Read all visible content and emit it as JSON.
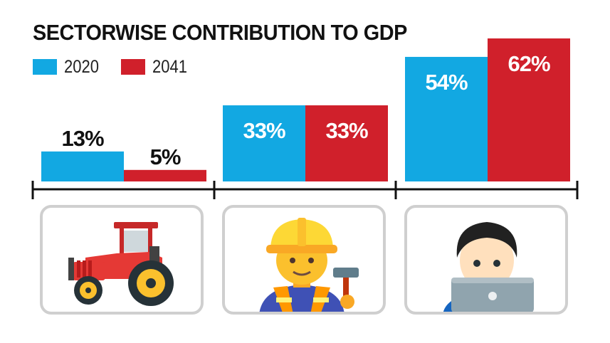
{
  "chart_data": {
    "type": "bar",
    "title": "SECTORWISE CONTRIBUTION TO GDP",
    "categories": [
      "Agriculture",
      "Industry",
      "Services"
    ],
    "series": [
      {
        "name": "2020",
        "values": [
          13,
          33,
          54
        ],
        "labels": [
          "13%",
          "33%",
          "54%"
        ]
      },
      {
        "name": "2041",
        "values": [
          5,
          33,
          62
        ],
        "labels": [
          "5%",
          "33%",
          "62%"
        ]
      }
    ],
    "colors": {
      "2020": "#12a8e2",
      "2041": "#d0202b"
    },
    "ylim": [
      0,
      62
    ],
    "xlabel": "",
    "ylabel": "",
    "grid": false,
    "legend_position": "top-left"
  },
  "icons": [
    "tractor-icon",
    "construction-worker-icon",
    "technologist-icon"
  ]
}
